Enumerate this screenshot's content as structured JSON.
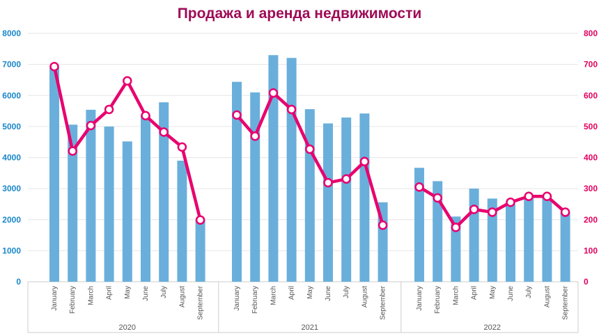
{
  "chart_data": {
    "type": "bar+line",
    "title": "Продажа и аренда недвижимости",
    "left_axis": {
      "ylim": [
        0,
        8000
      ],
      "ticks": [
        "0",
        "1000",
        "2000",
        "3000",
        "4000",
        "5000",
        "6000",
        "7000",
        "8000"
      ]
    },
    "right_axis": {
      "ylim": [
        0,
        800
      ],
      "ticks": [
        "0",
        "100",
        "200",
        "300",
        "400",
        "500",
        "600",
        "700",
        "800"
      ]
    },
    "grid": true,
    "colors": {
      "bars": "#6aafdb",
      "line": "#e8006e",
      "left_ticks": "#1a87c9",
      "right_ticks": "#e2005f",
      "title": "#9e0a56"
    },
    "groups": [
      {
        "year": "2020",
        "categories": [
          "January",
          "February",
          "March",
          "April",
          "May",
          "June",
          "July",
          "August",
          "September"
        ],
        "bars": [
          6900,
          5060,
          5540,
          5000,
          4520,
          5350,
          5780,
          3900,
          2000
        ],
        "line": [
          693,
          421,
          503,
          555,
          647,
          535,
          482,
          434,
          199
        ]
      },
      {
        "year": "2021",
        "categories": [
          "January",
          "February",
          "March",
          "April",
          "May",
          "June",
          "July",
          "August",
          "September"
        ],
        "bars": [
          6440,
          6100,
          7300,
          7210,
          5560,
          5100,
          5290,
          5420,
          2560
        ],
        "line": [
          537,
          469,
          608,
          555,
          427,
          319,
          331,
          387,
          182
        ]
      },
      {
        "year": "2022",
        "categories": [
          "January",
          "February",
          "March",
          "April",
          "May",
          "June",
          "July",
          "August",
          "September"
        ],
        "bars": [
          3670,
          3240,
          2100,
          3000,
          2680,
          2500,
          2700,
          2700,
          2250
        ],
        "line": [
          305,
          270,
          175,
          233,
          224,
          256,
          275,
          275,
          224
        ]
      }
    ]
  }
}
